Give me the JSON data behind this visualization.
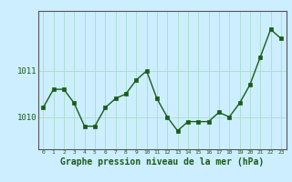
{
  "x": [
    0,
    1,
    2,
    3,
    4,
    5,
    6,
    7,
    8,
    9,
    10,
    11,
    12,
    13,
    14,
    15,
    16,
    17,
    18,
    19,
    20,
    21,
    22,
    23
  ],
  "y": [
    1010.2,
    1010.6,
    1010.6,
    1010.3,
    1009.8,
    1009.8,
    1010.2,
    1010.4,
    1010.5,
    1010.8,
    1011.0,
    1010.4,
    1010.0,
    1009.7,
    1009.9,
    1009.9,
    1009.9,
    1010.1,
    1010.0,
    1010.3,
    1010.7,
    1011.3,
    1011.9,
    1011.7
  ],
  "line_color": "#1a5c1a",
  "marker_color": "#1a5c1a",
  "bg_color": "#cceeff",
  "grid_color": "#aaddcc",
  "xlabel": "Graphe pression niveau de la mer (hPa)",
  "xlabel_fontsize": 7,
  "tick_labels": [
    "0",
    "1",
    "2",
    "3",
    "4",
    "5",
    "6",
    "7",
    "8",
    "9",
    "10",
    "11",
    "12",
    "13",
    "14",
    "15",
    "16",
    "17",
    "18",
    "19",
    "20",
    "21",
    "22",
    "23"
  ],
  "yticks": [
    1010,
    1011
  ],
  "ylim": [
    1009.3,
    1012.3
  ],
  "xlim": [
    -0.5,
    23.5
  ],
  "label_color": "#1a5c1a",
  "axis_color": "#555555"
}
